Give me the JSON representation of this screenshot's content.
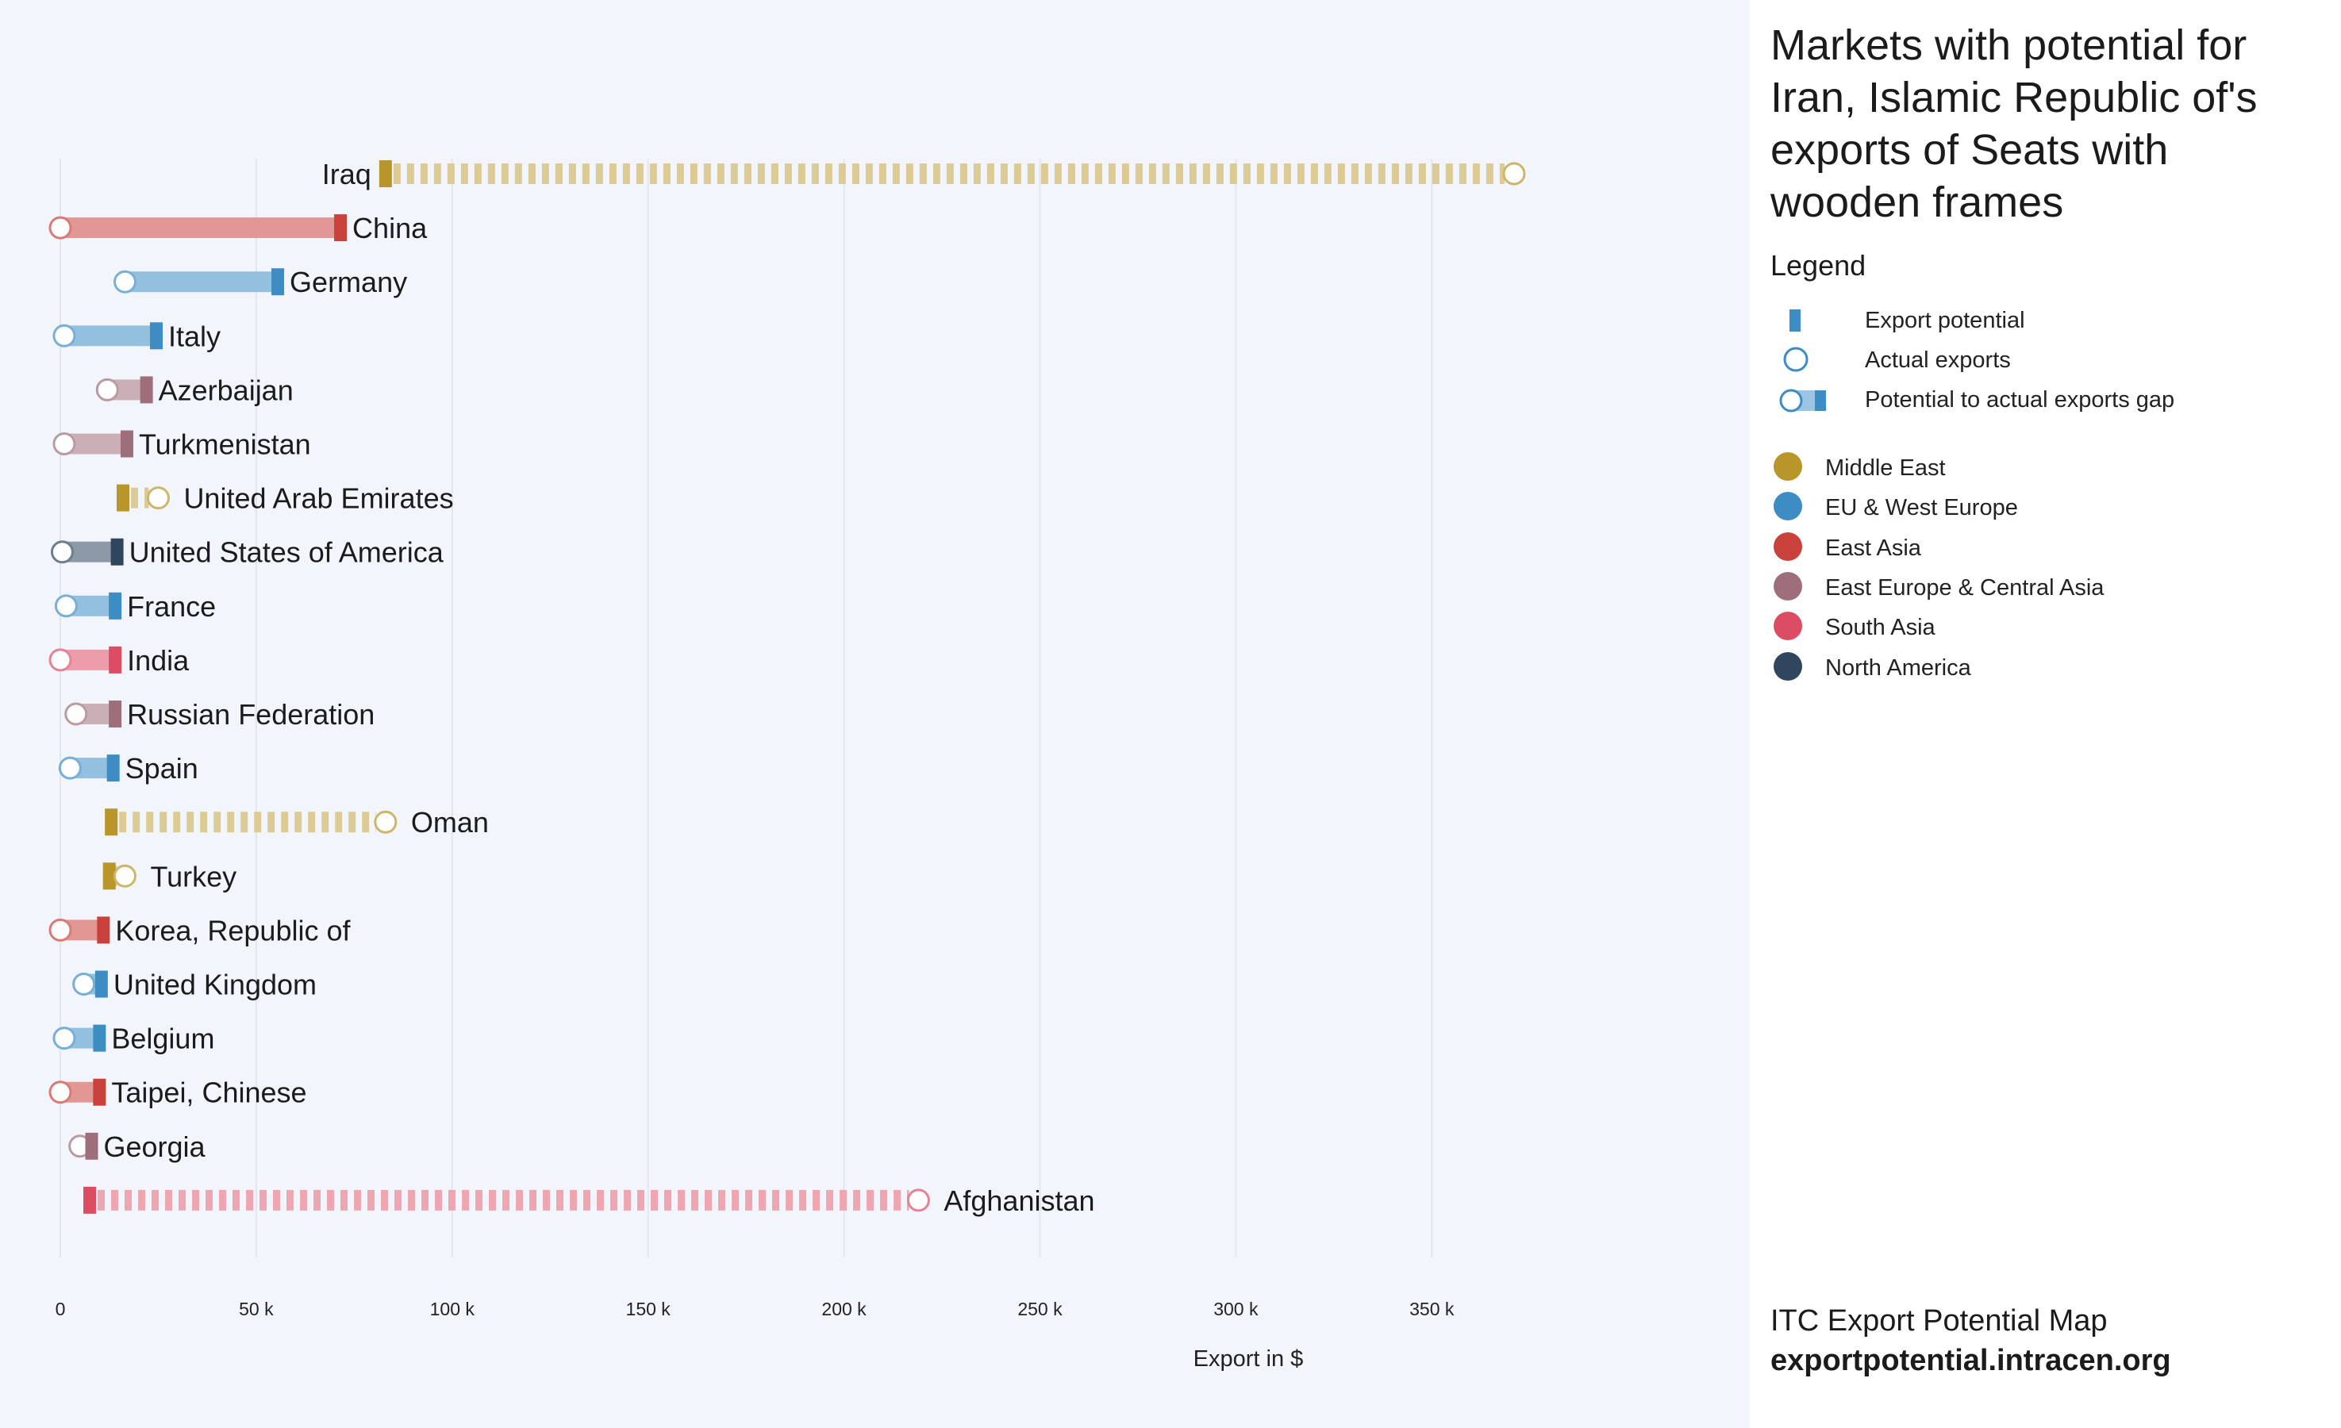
{
  "page": {
    "title": "Markets with potential for Iran, Islamic Republic of's exports of Seats with wooden frames",
    "legend_title": "Legend",
    "legend_items": [
      {
        "icon": "export-potential-marker",
        "label": "Export potential"
      },
      {
        "icon": "actual-exports-circle",
        "label": "Actual exports"
      },
      {
        "icon": "gap-bar",
        "label": "Potential to actual exports gap"
      }
    ],
    "regions": [
      {
        "name": "Middle East",
        "color": "#b8962a"
      },
      {
        "name": "EU & West Europe",
        "color": "#3d8cc4"
      },
      {
        "name": "East Asia",
        "color": "#c8413a"
      },
      {
        "name": "East Europe & Central Asia",
        "color": "#9e6f7a"
      },
      {
        "name": "South Asia",
        "color": "#dc4d63"
      },
      {
        "name": "North America",
        "color": "#2f465e"
      }
    ],
    "footer_line1": "ITC Export Potential Map",
    "footer_line2": "exportpotential.intracen.org",
    "legend_colors": {
      "potential": "#3d8cc4",
      "gap": "#9cc5e3"
    }
  },
  "chart_data": {
    "type": "dumbbell",
    "xlabel": "Export in $",
    "ylabel": "",
    "xlim": [
      0,
      370000
    ],
    "x_ticks": [
      {
        "value": 0,
        "label": "0"
      },
      {
        "value": 50000,
        "label": "50 k"
      },
      {
        "value": 100000,
        "label": "100 k"
      },
      {
        "value": 150000,
        "label": "150 k"
      },
      {
        "value": 200000,
        "label": "200 k"
      },
      {
        "value": 250000,
        "label": "250 k"
      },
      {
        "value": 300000,
        "label": "300 k"
      },
      {
        "value": 350000,
        "label": "350 k"
      }
    ],
    "grid": true,
    "markets": [
      {
        "country": "Iraq",
        "region": "Middle East",
        "potential": 83000,
        "actual": 371000
      },
      {
        "country": "China",
        "region": "East Asia",
        "potential": 71500,
        "actual": 0
      },
      {
        "country": "Germany",
        "region": "EU & West Europe",
        "potential": 55500,
        "actual": 16500
      },
      {
        "country": "Italy",
        "region": "EU & West Europe",
        "potential": 24500,
        "actual": 1000
      },
      {
        "country": "Azerbaijan",
        "region": "East Europe & Central Asia",
        "potential": 22000,
        "actual": 12000
      },
      {
        "country": "Turkmenistan",
        "region": "East Europe & Central Asia",
        "potential": 17000,
        "actual": 1000
      },
      {
        "country": "United Arab Emirates",
        "region": "Middle East",
        "potential": 16000,
        "actual": 25000
      },
      {
        "country": "United States of America",
        "region": "North America",
        "potential": 14500,
        "actual": 500
      },
      {
        "country": "France",
        "region": "EU & West Europe",
        "potential": 14000,
        "actual": 1500
      },
      {
        "country": "India",
        "region": "South Asia",
        "potential": 14000,
        "actual": 0
      },
      {
        "country": "Russian Federation",
        "region": "East Europe & Central Asia",
        "potential": 14000,
        "actual": 4000
      },
      {
        "country": "Spain",
        "region": "EU & West Europe",
        "potential": 13500,
        "actual": 2500
      },
      {
        "country": "Oman",
        "region": "Middle East",
        "potential": 13000,
        "actual": 83000
      },
      {
        "country": "Turkey",
        "region": "Middle East",
        "potential": 12500,
        "actual": 16500
      },
      {
        "country": "Korea, Republic of",
        "region": "East Asia",
        "potential": 11000,
        "actual": 0
      },
      {
        "country": "United Kingdom",
        "region": "EU & West Europe",
        "potential": 10500,
        "actual": 6000
      },
      {
        "country": "Belgium",
        "region": "EU & West Europe",
        "potential": 10000,
        "actual": 1000
      },
      {
        "country": "Taipei, Chinese",
        "region": "East Asia",
        "potential": 10000,
        "actual": 0
      },
      {
        "country": "Georgia",
        "region": "East Europe & Central Asia",
        "potential": 8000,
        "actual": 5000
      },
      {
        "country": "Afghanistan",
        "region": "South Asia",
        "potential": 7500,
        "actual": 219000
      }
    ]
  }
}
